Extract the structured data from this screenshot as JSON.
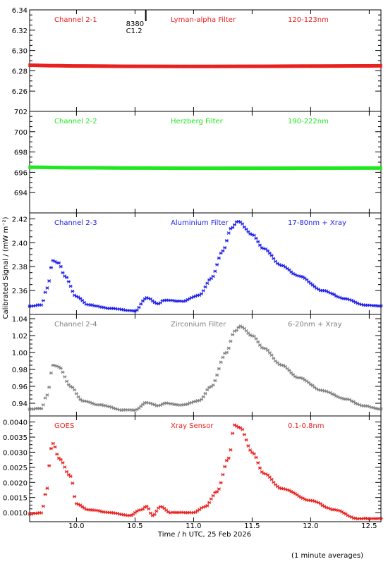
{
  "chart_data": {
    "type": "scatter",
    "x_axis": {
      "label": "Time / h UTC, 25 Feb 2026",
      "range": [
        9.6,
        12.6
      ],
      "ticks": [
        10.0,
        10.5,
        11.0,
        11.5,
        12.0,
        12.5
      ],
      "tick_labels": [
        "10.0",
        "10.5",
        "11.0",
        "11.5",
        "12.0",
        "12.5"
      ]
    },
    "y_label": "Calibrated Signal / (mW m⁻²)",
    "footnote": "(1 minute averages)",
    "event_marker": {
      "x": 10.58,
      "label_top": "8380",
      "label_bottom": "C1.2"
    },
    "panels": [
      {
        "name": "Channel 2-1",
        "filter": "Lyman-alpha Filter",
        "band": "120-123nm",
        "color": "#e8201e",
        "y_range": [
          6.24,
          6.34
        ],
        "y_ticks": [
          6.26,
          6.28,
          6.3,
          6.32,
          6.34
        ],
        "y_tick_labels": [
          "6.26",
          "6.28",
          "6.30",
          "6.32",
          "6.34"
        ],
        "profile": {
          "base": 6.2845,
          "pre": 0.0,
          "flare1": 0.0,
          "bump1": 0.0,
          "bump2": 0.0,
          "main": 0.0,
          "tail": 0.0
        },
        "points": [
          [
            9.6,
            6.2855
          ],
          [
            9.8,
            6.285
          ],
          [
            10.0,
            6.2847
          ],
          [
            10.5,
            6.2844
          ],
          [
            11.0,
            6.2843
          ],
          [
            11.5,
            6.2844
          ],
          [
            12.0,
            6.2846
          ],
          [
            12.5,
            6.2848
          ],
          [
            12.6,
            6.2849
          ]
        ]
      },
      {
        "name": "Channel 2-2",
        "filter": "Herzberg Filter",
        "band": "190-222nm",
        "color": "#1ee81e",
        "y_range": [
          692.0,
          702.0
        ],
        "y_ticks": [
          694,
          696,
          698,
          700,
          702
        ],
        "y_tick_labels": [
          "694",
          "696",
          "698",
          "700",
          "702"
        ],
        "profile": {
          "base": 696.4,
          "pre": 0.0,
          "flare1": 0.0,
          "bump1": 0.0,
          "bump2": 0.0,
          "main": 0.0,
          "tail": 0.0
        },
        "points": [
          [
            9.6,
            696.5
          ],
          [
            10.0,
            696.45
          ],
          [
            10.5,
            696.42
          ],
          [
            11.0,
            696.4
          ],
          [
            11.5,
            696.4
          ],
          [
            12.0,
            696.41
          ],
          [
            12.6,
            696.42
          ]
        ]
      },
      {
        "name": "Channel 2-3",
        "filter": "Aluminium Filter",
        "band": "17-80nm + Xray",
        "color": "#1e1ee8",
        "y_range": [
          2.34,
          2.425
        ],
        "y_ticks": [
          2.36,
          2.38,
          2.4,
          2.42
        ],
        "y_tick_labels": [
          "2.36",
          "2.38",
          "2.40",
          "2.42"
        ],
        "points": [
          [
            9.6,
            2.347
          ],
          [
            9.7,
            2.348
          ],
          [
            9.75,
            2.362
          ],
          [
            9.8,
            2.385
          ],
          [
            9.85,
            2.383
          ],
          [
            9.9,
            2.372
          ],
          [
            10.0,
            2.355
          ],
          [
            10.1,
            2.348
          ],
          [
            10.3,
            2.345
          ],
          [
            10.5,
            2.343
          ],
          [
            10.6,
            2.354
          ],
          [
            10.7,
            2.349
          ],
          [
            10.75,
            2.352
          ],
          [
            10.9,
            2.351
          ],
          [
            11.05,
            2.356
          ],
          [
            11.15,
            2.37
          ],
          [
            11.25,
            2.393
          ],
          [
            11.32,
            2.412
          ],
          [
            11.38,
            2.418
          ],
          [
            11.5,
            2.407
          ],
          [
            11.6,
            2.395
          ],
          [
            11.75,
            2.381
          ],
          [
            11.9,
            2.372
          ],
          [
            12.1,
            2.36
          ],
          [
            12.3,
            2.353
          ],
          [
            12.45,
            2.348
          ],
          [
            12.6,
            2.347
          ]
        ]
      },
      {
        "name": "Channel 2-4",
        "filter": "Zirconium Filter",
        "band": "6-20nm + Xray",
        "color": "#808080",
        "y_range": [
          0.925,
          1.045
        ],
        "y_ticks": [
          0.94,
          0.96,
          0.98,
          1.0,
          1.02,
          1.04
        ],
        "y_tick_labels": [
          "0.94",
          "0.96",
          "0.98",
          "1.00",
          "1.02",
          "1.04"
        ],
        "points": [
          [
            9.6,
            0.933
          ],
          [
            9.7,
            0.934
          ],
          [
            9.75,
            0.95
          ],
          [
            9.8,
            0.985
          ],
          [
            9.85,
            0.983
          ],
          [
            9.95,
            0.96
          ],
          [
            10.05,
            0.943
          ],
          [
            10.2,
            0.938
          ],
          [
            10.4,
            0.932
          ],
          [
            10.5,
            0.932
          ],
          [
            10.6,
            0.941
          ],
          [
            10.7,
            0.937
          ],
          [
            10.75,
            0.94
          ],
          [
            10.9,
            0.938
          ],
          [
            11.05,
            0.943
          ],
          [
            11.15,
            0.96
          ],
          [
            11.28,
            1.0
          ],
          [
            11.35,
            1.025
          ],
          [
            11.4,
            1.031
          ],
          [
            11.5,
            1.02
          ],
          [
            11.6,
            1.005
          ],
          [
            11.75,
            0.985
          ],
          [
            11.9,
            0.97
          ],
          [
            12.1,
            0.955
          ],
          [
            12.3,
            0.945
          ],
          [
            12.45,
            0.937
          ],
          [
            12.6,
            0.933
          ]
        ]
      },
      {
        "name": "GOES",
        "filter": "Xray Sensor",
        "band": "0.1-0.8nm",
        "color": "#e8201e",
        "y_range": [
          0.0007,
          0.0042
        ],
        "y_ticks": [
          0.001,
          0.0015,
          0.002,
          0.0025,
          0.003,
          0.0035,
          0.004
        ],
        "y_tick_labels": [
          "0.0010",
          "0.0015",
          "0.0020",
          "0.0025",
          "0.0030",
          "0.0035",
          "0.0040"
        ],
        "points": [
          [
            9.6,
            0.00095
          ],
          [
            9.7,
            0.001
          ],
          [
            9.75,
            0.0018
          ],
          [
            9.78,
            0.0031
          ],
          [
            9.8,
            0.0033
          ],
          [
            9.85,
            0.0028
          ],
          [
            9.95,
            0.0022
          ],
          [
            10.0,
            0.0013
          ],
          [
            10.1,
            0.0011
          ],
          [
            10.3,
            0.001
          ],
          [
            10.45,
            0.0009
          ],
          [
            10.55,
            0.0011
          ],
          [
            10.6,
            0.0012
          ],
          [
            10.65,
            0.0009
          ],
          [
            10.72,
            0.0012
          ],
          [
            10.8,
            0.001
          ],
          [
            11.0,
            0.001
          ],
          [
            11.1,
            0.0012
          ],
          [
            11.2,
            0.0017
          ],
          [
            11.3,
            0.0028
          ],
          [
            11.35,
            0.0039
          ],
          [
            11.4,
            0.0038
          ],
          [
            11.5,
            0.003
          ],
          [
            11.6,
            0.0023
          ],
          [
            11.75,
            0.0018
          ],
          [
            12.0,
            0.0014
          ],
          [
            12.2,
            0.0011
          ],
          [
            12.4,
            0.0008
          ],
          [
            12.6,
            0.0008
          ]
        ]
      }
    ]
  }
}
